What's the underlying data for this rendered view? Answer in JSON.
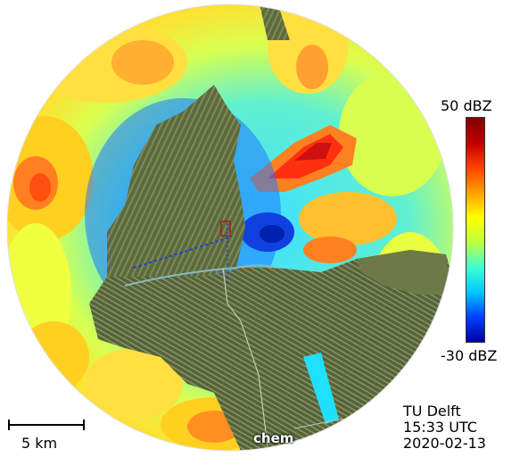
{
  "colorbar": {
    "max_label": "50 dBZ",
    "min_label": "-30 dBZ",
    "max_value": 50,
    "min_value": -30,
    "unit": "dBZ",
    "colors": [
      "#0000a0",
      "#0040ff",
      "#00c8ff",
      "#40ffd0",
      "#c0ff40",
      "#ffff00",
      "#ffa000",
      "#ff4000",
      "#c00000",
      "#800000"
    ]
  },
  "scale_bar": {
    "label": "5 km"
  },
  "credit": {
    "institution": "TU Delft",
    "time": "15:33 UTC",
    "date": "2020-02-13"
  },
  "map": {
    "watermark": "chem"
  }
}
